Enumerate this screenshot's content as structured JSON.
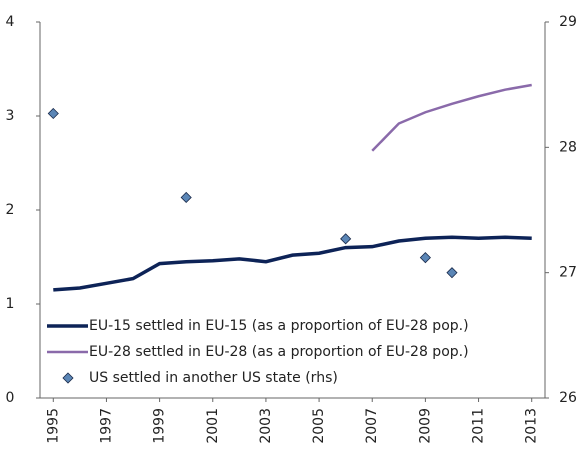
{
  "chart_data": {
    "type": "line",
    "x": [
      1995,
      1996,
      1997,
      1998,
      1999,
      2000,
      2001,
      2002,
      2003,
      2004,
      2005,
      2006,
      2007,
      2008,
      2009,
      2010,
      2011,
      2012,
      2013
    ],
    "xlim": [
      1994.5,
      2013.5
    ],
    "xticks": [
      1995,
      1997,
      1999,
      2001,
      2003,
      2005,
      2007,
      2009,
      2011,
      2013
    ],
    "ylim": [
      0,
      4
    ],
    "yticks": [
      0,
      1,
      2,
      3,
      4
    ],
    "y2lim": [
      26,
      29
    ],
    "y2ticks": [
      26,
      27,
      28,
      29
    ],
    "legend": "lower left",
    "series": [
      {
        "name": "EU-15 settled in EU-15 (as a proportion of EU-28 pop.)",
        "color": "#0d2357",
        "style": "line",
        "values": [
          1.15,
          1.17,
          1.22,
          1.27,
          1.43,
          1.45,
          1.46,
          1.48,
          1.45,
          1.52,
          1.54,
          1.6,
          1.61,
          1.67,
          1.7,
          1.71,
          1.7,
          1.71,
          1.7
        ]
      },
      {
        "name": "EU-28 settled in EU-28 (as a proportion of EU-28 pop.)",
        "color": "#8a6aaa",
        "style": "line",
        "values": [
          null,
          null,
          null,
          null,
          null,
          null,
          null,
          null,
          null,
          null,
          null,
          null,
          2.63,
          2.92,
          3.04,
          3.13,
          3.21,
          3.28,
          3.33
        ]
      },
      {
        "name": "US settled in another US state (rhs)",
        "color": "#5b86b6",
        "style": "marker",
        "axis": "y2",
        "values": [
          28.27,
          null,
          null,
          null,
          null,
          27.6,
          null,
          null,
          null,
          null,
          null,
          27.27,
          null,
          null,
          27.12,
          27.0,
          null,
          null,
          null
        ]
      }
    ]
  }
}
